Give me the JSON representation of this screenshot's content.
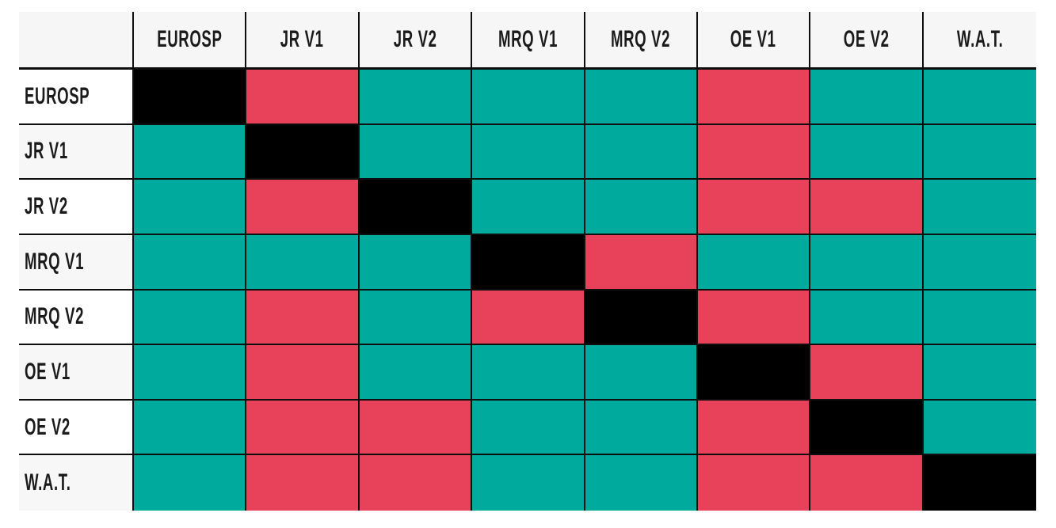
{
  "chart_data": {
    "type": "heatmap",
    "title": "",
    "legend_position": "none",
    "x_categories": [
      "EUROSP",
      "JR V1",
      "JR V2",
      "MRQ V1",
      "MRQ V2",
      "OE V1",
      "OE V2",
      "W.A.T."
    ],
    "y_categories": [
      "EUROSP",
      "JR V1",
      "JR V2",
      "MRQ V1",
      "MRQ V2",
      "OE V1",
      "OE V2",
      "W.A.T."
    ],
    "palette": {
      "teal": "#00AB9D",
      "red": "#E8415A",
      "black": "#000000"
    },
    "rows": [
      {
        "label": "EUROSP",
        "cells": [
          "black",
          "red",
          "teal",
          "teal",
          "teal",
          "red",
          "teal",
          "teal"
        ]
      },
      {
        "label": "JR V1",
        "cells": [
          "teal",
          "black",
          "teal",
          "teal",
          "teal",
          "red",
          "teal",
          "teal"
        ]
      },
      {
        "label": "JR V2",
        "cells": [
          "teal",
          "red",
          "black",
          "teal",
          "teal",
          "red",
          "red",
          "teal"
        ]
      },
      {
        "label": "MRQ V1",
        "cells": [
          "teal",
          "teal",
          "teal",
          "black",
          "red",
          "teal",
          "teal",
          "teal"
        ]
      },
      {
        "label": "MRQ V2",
        "cells": [
          "teal",
          "red",
          "teal",
          "red",
          "black",
          "red",
          "teal",
          "teal"
        ]
      },
      {
        "label": "OE V1",
        "cells": [
          "teal",
          "red",
          "teal",
          "teal",
          "teal",
          "black",
          "red",
          "teal"
        ]
      },
      {
        "label": "OE V2",
        "cells": [
          "teal",
          "red",
          "red",
          "teal",
          "teal",
          "red",
          "black",
          "teal"
        ]
      },
      {
        "label": "W.A.T.",
        "cells": [
          "teal",
          "red",
          "red",
          "teal",
          "teal",
          "red",
          "red",
          "black"
        ]
      }
    ]
  },
  "ui": {
    "header_bg": "#F6F6F6",
    "row_bg": "#FFFFFF",
    "row_alt_bg": "#F7F7F7",
    "border_color": "#0E0E0E",
    "text_color": "#1B1B1B"
  }
}
